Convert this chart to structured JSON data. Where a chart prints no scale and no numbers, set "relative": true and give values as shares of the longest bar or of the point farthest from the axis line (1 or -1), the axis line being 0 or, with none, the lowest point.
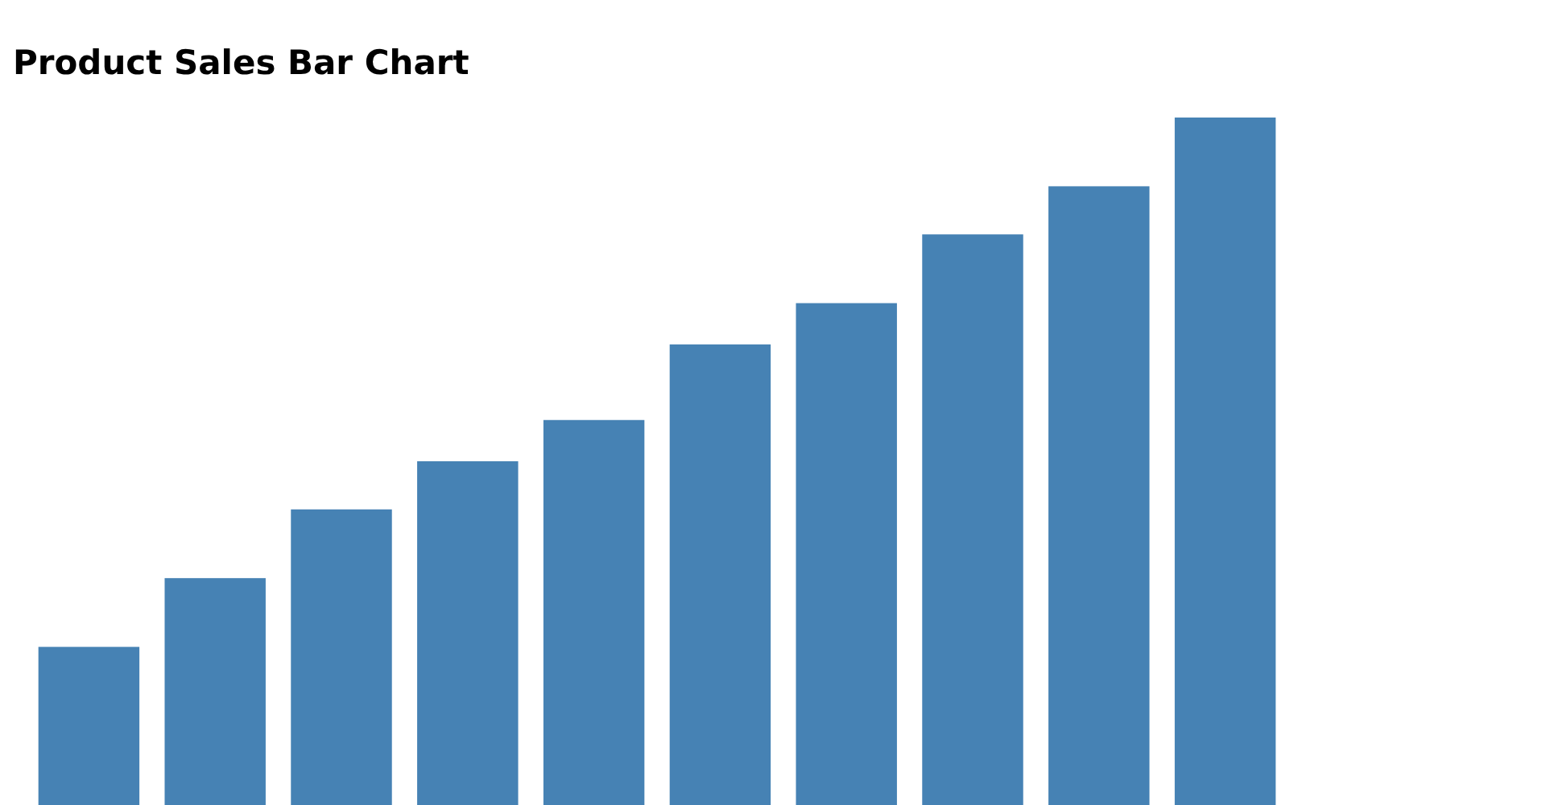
{
  "chart_data": {
    "type": "bar",
    "title": "Product Sales Bar Chart",
    "relative": true,
    "categories": [
      null,
      null,
      null,
      null,
      null,
      null,
      null,
      null,
      null,
      null
    ],
    "values": [
      0.23,
      0.33,
      0.43,
      0.5,
      0.56,
      0.67,
      0.73,
      0.83,
      0.9,
      1
    ],
    "color": "#4682b4"
  }
}
